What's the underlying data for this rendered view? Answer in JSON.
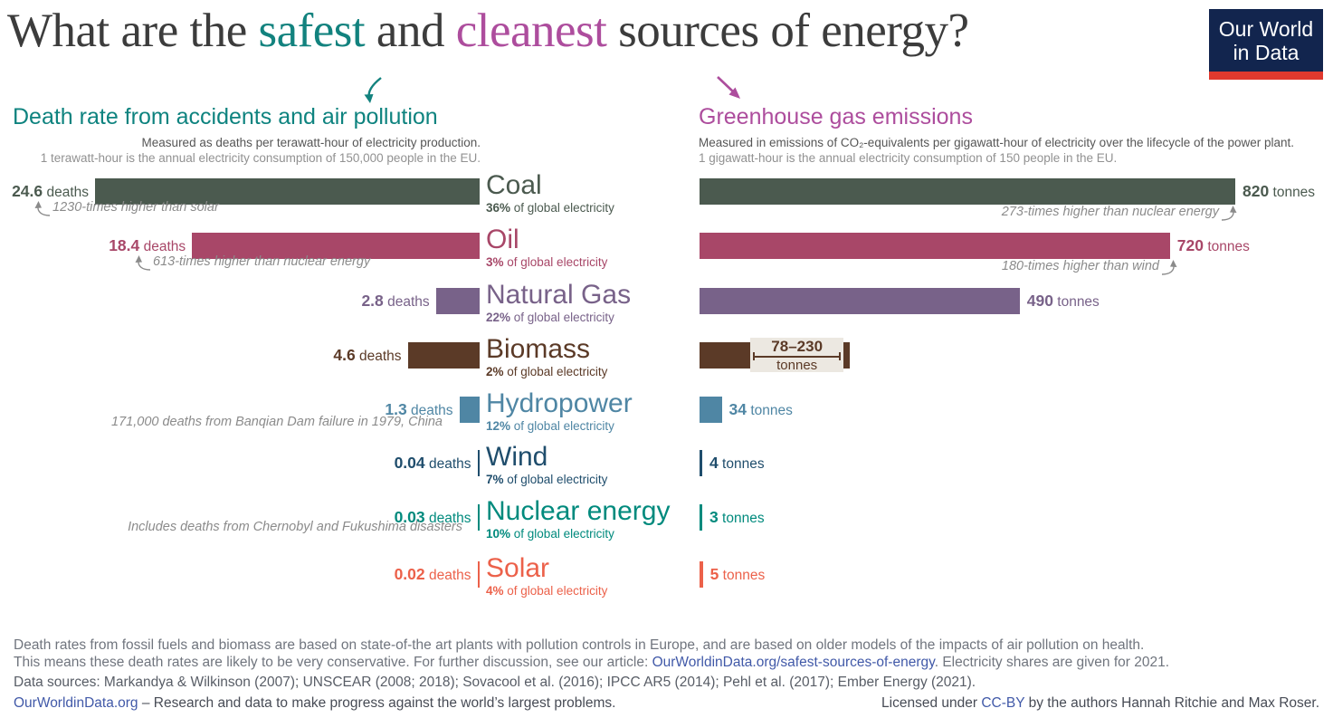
{
  "header": {
    "title": {
      "prefix": "What are the ",
      "safest": "safest",
      "middle": " and ",
      "cleanest": "cleanest",
      "suffix": " sources of energy?"
    },
    "logo": {
      "line1": "Our World",
      "line2": "in Data",
      "bg_color": "#12254e",
      "accent_color": "#e0392e"
    }
  },
  "chart_data": [
    {
      "type": "bar",
      "title": "Death rate from accidents and air pollution",
      "subtitle_lines": [
        "Measured as deaths per terawatt-hour of electricity production.",
        "1 terawatt-hour is the annual electricity consumption of 150,000 people in the EU."
      ],
      "unit": "deaths",
      "bar_alignment": "right",
      "categories": [
        "Coal",
        "Oil",
        "Natural Gas",
        "Biomass",
        "Hydropower",
        "Wind",
        "Nuclear energy",
        "Solar"
      ],
      "values": [
        24.6,
        18.4,
        2.8,
        4.6,
        1.3,
        0.04,
        0.03,
        0.02
      ],
      "value_labels": [
        "24.6",
        "18.4",
        "2.8",
        "4.6",
        "1.3",
        "0.04",
        "0.03",
        "0.02"
      ],
      "shares": [
        "36%",
        "3%",
        "22%",
        "2%",
        "12%",
        "7%",
        "10%",
        "4%"
      ],
      "share_suffix": " of global electricity",
      "colors": [
        "#4b5a4f",
        "#a84768",
        "#786289",
        "#5b3a27",
        "#4f86a4",
        "#1f4d6c",
        "#008a7d",
        "#ec614a"
      ],
      "annotations": [
        {
          "row": "Coal",
          "text": "1230-times higher than solar"
        },
        {
          "row": "Oil",
          "text": "613-times higher than nuclear energy"
        },
        {
          "row": "Hydropower",
          "text": "171,000 deaths from Banqian Dam failure in 1979, China"
        },
        {
          "row": "Nuclear energy",
          "text": "Includes deaths from Chernobyl and Fukushima disasters"
        }
      ]
    },
    {
      "type": "bar",
      "title": "Greenhouse gas emissions",
      "subtitle_lines": [
        "Measured in emissions of CO₂-equivalents per gigawatt-hour of electricity over the lifecycle of the power plant.",
        "1 gigawatt-hour is the annual electricity consumption of 150 people in the EU."
      ],
      "unit": "tonnes",
      "bar_alignment": "left",
      "categories": [
        "Coal",
        "Oil",
        "Natural Gas",
        "Biomass",
        "Hydropower",
        "Wind",
        "Nuclear energy",
        "Solar"
      ],
      "values": [
        820,
        720,
        490,
        78,
        34,
        4,
        3,
        5
      ],
      "value_labels": [
        "820",
        "720",
        "490",
        "78–230",
        "34",
        "4",
        "3",
        "5"
      ],
      "biomass_range": {
        "low": 78,
        "high": 230,
        "label": "78–230",
        "unit": "tonnes"
      },
      "colors": [
        "#4b5a4f",
        "#a84768",
        "#786289",
        "#5b3a27",
        "#4f86a4",
        "#1f4d6c",
        "#008a7d",
        "#ec614a"
      ],
      "annotations": [
        {
          "row": "Coal",
          "text": "273-times higher than nuclear energy"
        },
        {
          "row": "Oil",
          "text": "180-times higher than wind"
        }
      ]
    }
  ],
  "annotations": {
    "left_coal": "1230-times higher than solar",
    "left_oil": "613-times higher than nuclear energy",
    "left_hydro": "171,000 deaths from Banqian Dam failure in 1979, China",
    "left_nuclear": "Includes deaths from Chernobyl and Fukushima disasters",
    "right_coal": "273-times higher than nuclear energy",
    "right_oil": "180-times higher than wind"
  },
  "footer": {
    "line1": "Death rates from fossil fuels and biomass are based on state-of-the art plants with pollution controls in Europe, and are based on older models of the impacts of air pollution on health.",
    "line2_prefix": "This means these death rates are likely to be very conservative. For further discussion, see our article: ",
    "line2_link": "OurWorldinData.org/safest-sources-of-energy",
    "line2_suffix": ". Electricity shares are given for 2021.",
    "line3": "Data sources: Markandya & Wilkinson (2007); UNSCEAR (2008; 2018); Sovacool et al. (2016); IPCC AR5 (2014); Pehl et al. (2017); Ember Energy (2021).",
    "line4_link": "OurWorldinData.org",
    "line4_text": " – Research and data to make progress against the world’s largest problems.",
    "license_prefix": "Licensed under ",
    "license_link": "CC-BY",
    "license_suffix": " by the authors Hannah Ritchie and Max Roser."
  }
}
